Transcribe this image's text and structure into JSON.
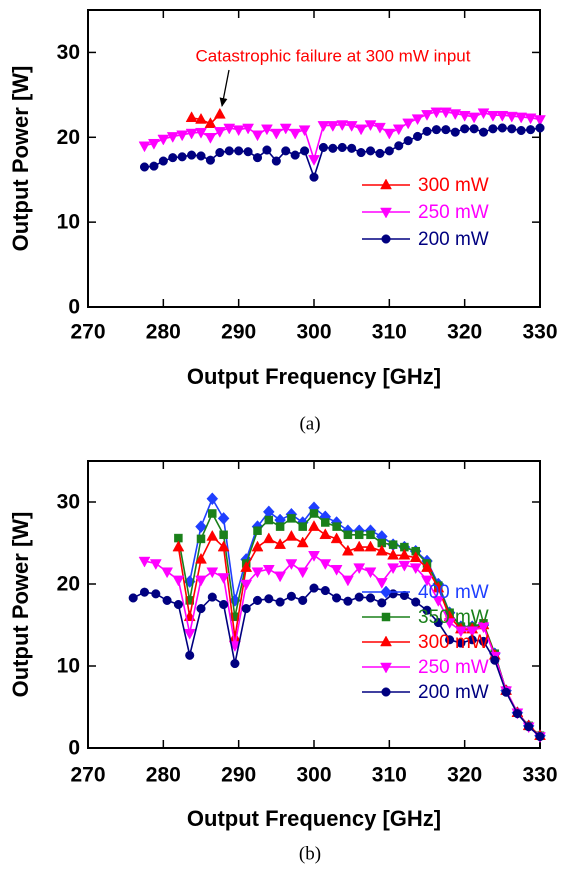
{
  "chart_data": [
    {
      "type": "line",
      "caption": "(a)",
      "x_label": "Output Frequency [GHz]",
      "y_label": "Output Power [W]",
      "xlim": [
        270,
        330
      ],
      "xticks": [
        270,
        280,
        290,
        300,
        310,
        320,
        330
      ],
      "ylim": [
        0,
        35
      ],
      "yticks": [
        0,
        10,
        20,
        30
      ],
      "grid": false,
      "legend": "lower right",
      "annotation": "Catastrophic failure at 300 mW input",
      "annotation_color": "#ff0000",
      "x": [
        277.5,
        278.75,
        280,
        281.25,
        282.5,
        283.75,
        285,
        286.25,
        287.5,
        288.75,
        290,
        291.25,
        292.5,
        293.75,
        295,
        296.25,
        297.5,
        298.75,
        300,
        301.25,
        302.5,
        303.75,
        305,
        306.25,
        307.5,
        308.75,
        310,
        311.25,
        312.5,
        313.75,
        315,
        316.25,
        317.5,
        318.75,
        320,
        321.25,
        322.5,
        323.75,
        325,
        326.25,
        327.5,
        328.75,
        330
      ],
      "series": [
        {
          "name": "300 mW",
          "color": "#ff0000",
          "marker": "triangle-up",
          "values": [
            null,
            null,
            null,
            null,
            null,
            22.3,
            22.1,
            21.6,
            22.7,
            null,
            null,
            null,
            null,
            null,
            null,
            null,
            null,
            null,
            null,
            null,
            null,
            null,
            null,
            null,
            null,
            null,
            null,
            null,
            null,
            null,
            null,
            null,
            null,
            null,
            null,
            null,
            null,
            null,
            null,
            null,
            null,
            null,
            null
          ]
        },
        {
          "name": "250 mW",
          "color": "#ff00ff",
          "marker": "triangle-down",
          "values": [
            19.0,
            19.3,
            19.8,
            20.1,
            20.3,
            20.5,
            20.6,
            20.0,
            20.7,
            21.1,
            20.9,
            21.1,
            20.3,
            21.0,
            20.5,
            21.1,
            20.5,
            20.9,
            17.4,
            21.4,
            21.4,
            21.5,
            21.4,
            21.0,
            21.5,
            21.2,
            20.5,
            21.0,
            21.7,
            22.2,
            22.7,
            23.0,
            23.0,
            22.8,
            22.6,
            22.4,
            22.9,
            22.6,
            22.6,
            22.5,
            22.4,
            22.3,
            22.1
          ]
        },
        {
          "name": "200 mW",
          "color": "#000080",
          "marker": "circle",
          "values": [
            16.5,
            16.6,
            17.2,
            17.6,
            17.7,
            17.9,
            17.8,
            17.3,
            18.2,
            18.4,
            18.4,
            18.3,
            17.6,
            18.5,
            17.2,
            18.4,
            17.9,
            18.4,
            15.3,
            18.8,
            18.7,
            18.8,
            18.7,
            18.2,
            18.4,
            18.1,
            18.4,
            19.0,
            19.6,
            20.1,
            20.7,
            20.9,
            20.9,
            20.6,
            21.0,
            21.0,
            20.6,
            21.0,
            21.1,
            21.0,
            20.8,
            20.9,
            21.1
          ]
        }
      ]
    },
    {
      "type": "line",
      "caption": "(b)",
      "x_label": "Output Frequency [GHz]",
      "y_label": "Output Power [W]",
      "xlim": [
        270,
        330
      ],
      "xticks": [
        270,
        280,
        290,
        300,
        310,
        320,
        330
      ],
      "ylim": [
        0,
        35
      ],
      "yticks": [
        0,
        10,
        20,
        30
      ],
      "grid": false,
      "legend": "lower right",
      "x": [
        276,
        277.5,
        279,
        280.5,
        282,
        283.5,
        285,
        286.5,
        288,
        289.5,
        291,
        292.5,
        294,
        295.5,
        297,
        298.5,
        300,
        301.5,
        303,
        304.5,
        306,
        307.5,
        309,
        310.5,
        312,
        313.5,
        315,
        316.5,
        318,
        319.5,
        321,
        322.5,
        324,
        325.5,
        327,
        328.5,
        330
      ],
      "series": [
        {
          "name": "400 mW",
          "color": "#1f3fff",
          "marker": "diamond",
          "values": [
            null,
            null,
            null,
            null,
            null,
            20.3,
            27.0,
            30.4,
            28.0,
            18.0,
            23.0,
            27.0,
            28.8,
            27.8,
            28.5,
            27.5,
            29.3,
            28.2,
            27.5,
            26.5,
            26.5,
            26.5,
            25.8,
            24.8,
            24.5,
            24.0,
            22.8,
            20.0,
            16.5,
            14.8,
            14.8,
            15.0,
            11.5,
            7.0,
            4.3,
            2.7,
            1.5
          ]
        },
        {
          "name": "350 mW",
          "color": "#1a801a",
          "marker": "square",
          "values": [
            null,
            null,
            null,
            null,
            25.6,
            18.0,
            25.5,
            28.6,
            26.0,
            16.0,
            22.5,
            26.5,
            27.8,
            27.0,
            28.0,
            27.0,
            28.6,
            27.5,
            27.0,
            26.0,
            26.0,
            26.0,
            25.0,
            24.8,
            24.5,
            24.0,
            22.5,
            19.8,
            16.5,
            14.8,
            14.8,
            15.2,
            11.5,
            7.0,
            4.3,
            2.7,
            1.5
          ]
        },
        {
          "name": "300 mW",
          "color": "#ff0000",
          "marker": "triangle-up",
          "values": [
            null,
            null,
            null,
            null,
            24.5,
            16.0,
            23.0,
            25.8,
            24.5,
            13.5,
            22.0,
            24.5,
            25.5,
            24.8,
            25.8,
            25.0,
            27.0,
            26.0,
            25.5,
            24.0,
            24.5,
            24.5,
            24.0,
            23.5,
            23.5,
            23.2,
            22.0,
            19.5,
            16.0,
            14.5,
            14.5,
            15.0,
            11.3,
            7.0,
            4.3,
            2.7,
            1.5
          ]
        },
        {
          "name": "250 mW",
          "color": "#ff00ff",
          "marker": "triangle-down",
          "values": [
            null,
            22.8,
            22.5,
            21.5,
            20.5,
            14.0,
            20.5,
            21.5,
            20.8,
            12.5,
            20.0,
            21.5,
            21.8,
            21.0,
            22.5,
            21.5,
            23.5,
            22.5,
            21.8,
            20.5,
            22.0,
            21.5,
            20.2,
            22.0,
            22.3,
            22.0,
            20.5,
            18.0,
            15.3,
            14.3,
            14.3,
            14.8,
            11.2,
            7.0,
            4.3,
            2.6,
            1.4
          ]
        },
        {
          "name": "200 mW",
          "color": "#000080",
          "marker": "circle",
          "values": [
            18.3,
            19.0,
            18.8,
            18.0,
            17.5,
            11.3,
            17.0,
            18.4,
            17.5,
            10.3,
            17.0,
            18.0,
            18.2,
            17.8,
            18.5,
            18.0,
            19.5,
            19.2,
            18.3,
            17.9,
            18.4,
            18.3,
            17.7,
            18.8,
            18.6,
            17.8,
            16.8,
            15.3,
            13.2,
            12.8,
            13.2,
            13.0,
            10.7,
            6.8,
            4.2,
            2.6,
            1.4
          ]
        }
      ]
    }
  ]
}
